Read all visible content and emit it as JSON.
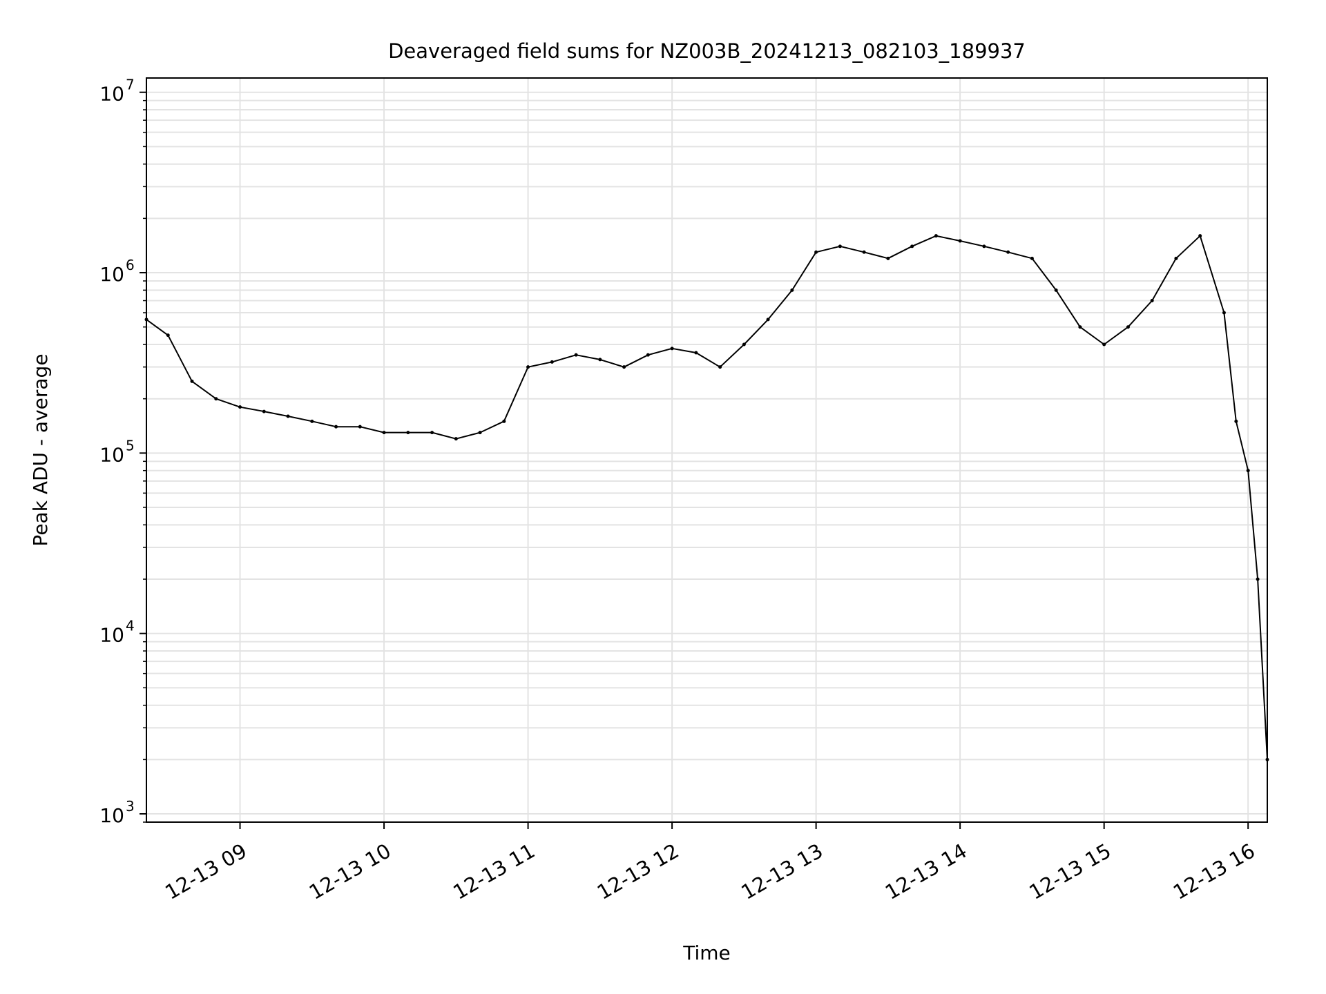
{
  "chart_data": {
    "type": "line",
    "title": "Deaveraged field sums for NZ003B_20241213_082103_189937",
    "xlabel": "Time",
    "ylabel": "Peak ADU - average",
    "yscale": "log",
    "grid": true,
    "xlim": [
      "2024-12-13 08:21",
      "2024-12-13 16:08"
    ],
    "ylim": [
      900,
      12000000
    ],
    "x_ticks": [
      {
        "value": "2024-12-13 09:00",
        "label": "12-13 09"
      },
      {
        "value": "2024-12-13 10:00",
        "label": "12-13 10"
      },
      {
        "value": "2024-12-13 11:00",
        "label": "12-13 11"
      },
      {
        "value": "2024-12-13 12:00",
        "label": "12-13 12"
      },
      {
        "value": "2024-12-13 13:00",
        "label": "12-13 13"
      },
      {
        "value": "2024-12-13 14:00",
        "label": "12-13 14"
      },
      {
        "value": "2024-12-13 15:00",
        "label": "12-13 15"
      },
      {
        "value": "2024-12-13 16:00",
        "label": "12-13 16"
      }
    ],
    "y_ticks": [
      {
        "value": 1000,
        "base": "10",
        "exp": "3"
      },
      {
        "value": 10000,
        "base": "10",
        "exp": "4"
      },
      {
        "value": 100000,
        "base": "10",
        "exp": "5"
      },
      {
        "value": 1000000,
        "base": "10",
        "exp": "6"
      },
      {
        "value": 10000000,
        "base": "10",
        "exp": "7"
      }
    ],
    "series": [
      {
        "color": "#000000",
        "x": [
          "2024-12-13 08:21",
          "2024-12-13 08:30",
          "2024-12-13 08:40",
          "2024-12-13 08:50",
          "2024-12-13 09:00",
          "2024-12-13 09:10",
          "2024-12-13 09:20",
          "2024-12-13 09:30",
          "2024-12-13 09:40",
          "2024-12-13 09:50",
          "2024-12-13 10:00",
          "2024-12-13 10:10",
          "2024-12-13 10:20",
          "2024-12-13 10:30",
          "2024-12-13 10:40",
          "2024-12-13 10:50",
          "2024-12-13 11:00",
          "2024-12-13 11:10",
          "2024-12-13 11:20",
          "2024-12-13 11:30",
          "2024-12-13 11:40",
          "2024-12-13 11:50",
          "2024-12-13 12:00",
          "2024-12-13 12:10",
          "2024-12-13 12:20",
          "2024-12-13 12:30",
          "2024-12-13 12:40",
          "2024-12-13 12:50",
          "2024-12-13 13:00",
          "2024-12-13 13:10",
          "2024-12-13 13:20",
          "2024-12-13 13:30",
          "2024-12-13 13:40",
          "2024-12-13 13:50",
          "2024-12-13 14:00",
          "2024-12-13 14:10",
          "2024-12-13 14:20",
          "2024-12-13 14:30",
          "2024-12-13 14:40",
          "2024-12-13 14:50",
          "2024-12-13 15:00",
          "2024-12-13 15:10",
          "2024-12-13 15:20",
          "2024-12-13 15:30",
          "2024-12-13 15:40",
          "2024-12-13 15:50",
          "2024-12-13 15:55",
          "2024-12-13 16:00",
          "2024-12-13 16:04",
          "2024-12-13 16:08"
        ],
        "y": [
          550000,
          450000,
          250000,
          200000,
          180000,
          170000,
          160000,
          150000,
          140000,
          140000,
          130000,
          130000,
          130000,
          120000,
          130000,
          150000,
          300000,
          320000,
          350000,
          330000,
          300000,
          350000,
          380000,
          360000,
          300000,
          400000,
          550000,
          800000,
          1300000,
          1400000,
          1300000,
          1200000,
          1400000,
          1600000,
          1500000,
          1400000,
          1300000,
          1200000,
          800000,
          500000,
          400000,
          500000,
          700000,
          1200000,
          1600000,
          600000,
          150000,
          80000,
          20000,
          2000
        ]
      }
    ]
  }
}
